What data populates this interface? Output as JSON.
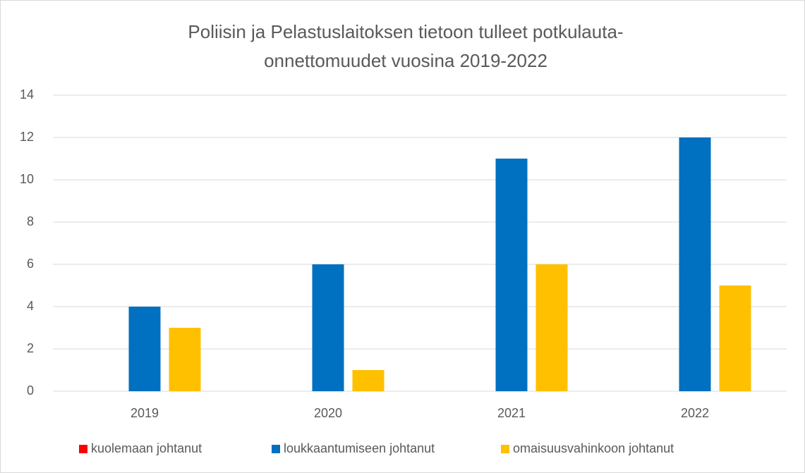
{
  "chart_data": {
    "type": "bar",
    "title": [
      "Poliisin ja Pelastuslaitoksen tietoon tulleet potkulauta-",
      "onnettomuudet vuosina 2019-2022"
    ],
    "categories": [
      "2019",
      "2020",
      "2021",
      "2022"
    ],
    "series": [
      {
        "name": "kuolemaan johtanut",
        "color": "#ff0000",
        "values": [
          0,
          0,
          0,
          0
        ]
      },
      {
        "name": "loukkaantumiseen johtanut",
        "color": "#0070c0",
        "values": [
          4,
          6,
          11,
          12
        ]
      },
      {
        "name": "omaisuusvahinkoon johtanut",
        "color": "#ffc000",
        "values": [
          3,
          1,
          6,
          5
        ]
      }
    ],
    "ylim": [
      0,
      14
    ],
    "yticks": [
      0,
      2,
      4,
      6,
      8,
      10,
      12,
      14
    ],
    "grid": true,
    "legend": "bottom"
  }
}
